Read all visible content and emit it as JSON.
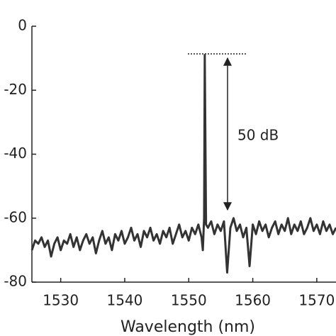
{
  "chart_data": {
    "type": "line",
    "xlabel": "Wavelength (nm)",
    "annotation": "50 dB",
    "x": [
      1525.5,
      1526,
      1526.5,
      1527,
      1527.5,
      1528,
      1528.5,
      1529,
      1529.5,
      1530,
      1530.5,
      1531,
      1531.5,
      1532,
      1532.5,
      1533,
      1533.5,
      1534,
      1534.5,
      1535,
      1535.5,
      1536,
      1536.5,
      1537,
      1537.5,
      1538,
      1538.5,
      1539,
      1539.5,
      1540,
      1540.5,
      1541,
      1541.5,
      1542,
      1542.5,
      1543,
      1543.5,
      1544,
      1544.5,
      1545,
      1545.5,
      1546,
      1546.5,
      1547,
      1547.5,
      1548,
      1548.5,
      1549,
      1549.5,
      1550,
      1550.5,
      1551,
      1551.5,
      1552,
      1552.2,
      1552.4,
      1552.5,
      1552.7,
      1553,
      1553.5,
      1554,
      1554.5,
      1555,
      1555.5,
      1556,
      1556.5,
      1557,
      1557.5,
      1558,
      1558.5,
      1559,
      1559.5,
      1560,
      1560.5,
      1561,
      1561.5,
      1562,
      1562.5,
      1563,
      1563.5,
      1564,
      1564.5,
      1565,
      1565.5,
      1566,
      1566.5,
      1567,
      1567.5,
      1568,
      1568.5,
      1569,
      1569.5,
      1570,
      1570.5,
      1571,
      1571.5,
      1572,
      1572.5,
      1573
    ],
    "series": [
      {
        "color": "#333333",
        "values": [
          -70,
          -67,
          -68,
          -66,
          -69,
          -67,
          -72,
          -68,
          -66,
          -70,
          -67,
          -68,
          -65,
          -69,
          -66,
          -70,
          -67,
          -65,
          -68,
          -66,
          -71,
          -67,
          -64,
          -68,
          -66,
          -70,
          -65,
          -67,
          -64,
          -68,
          -66,
          -63,
          -67,
          -65,
          -69,
          -64,
          -66,
          -63,
          -67,
          -65,
          -68,
          -64,
          -66,
          -63,
          -68,
          -65,
          -62,
          -66,
          -64,
          -67,
          -63,
          -65,
          -62,
          -66,
          -70,
          -60,
          -9,
          -62,
          -63,
          -61,
          -65,
          -62,
          -64,
          -61,
          -77,
          -63,
          -60,
          -64,
          -62,
          -66,
          -63,
          -75,
          -62,
          -65,
          -61,
          -64,
          -62,
          -66,
          -63,
          -61,
          -65,
          -62,
          -64,
          -60,
          -65,
          -62,
          -64,
          -61,
          -65,
          -63,
          -60,
          -64,
          -62,
          -65,
          -61,
          -64,
          -62,
          -65,
          -63
        ]
      }
    ],
    "xlim": [
      1525.5,
      1573
    ],
    "xticks": [
      1530,
      1540,
      1550,
      1560,
      1570
    ],
    "ylim": [
      -80,
      0
    ],
    "yticks": [
      0,
      -20,
      -40,
      -60,
      -80
    ]
  }
}
